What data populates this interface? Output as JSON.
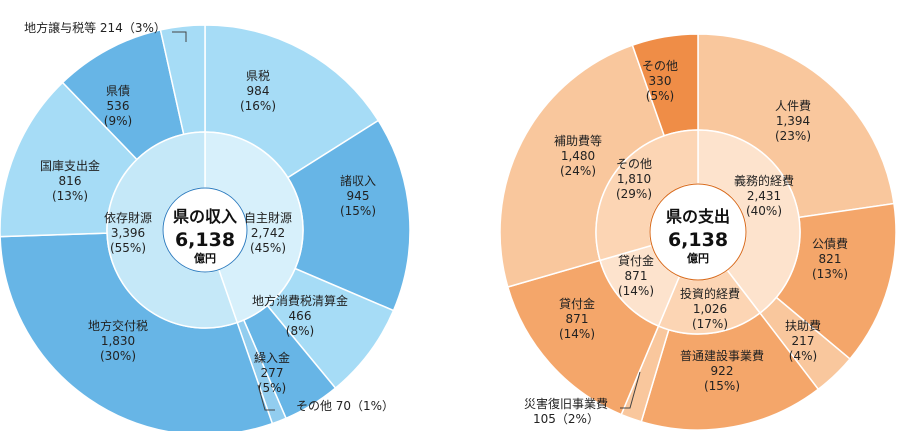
{
  "chart_data": [
    {
      "type": "pie",
      "title": "県の収入",
      "total": "6,138",
      "unit": "億円",
      "inner": [
        {
          "name": "自主財源",
          "value": "2,742",
          "pct": "45%"
        },
        {
          "name": "依存財源",
          "value": "3,396",
          "pct": "55%"
        }
      ],
      "outer": [
        {
          "name": "県税",
          "value": "984",
          "pct": "16%"
        },
        {
          "name": "諸収入",
          "value": "945",
          "pct": "15%"
        },
        {
          "name": "地方消費税清算金",
          "value": "466",
          "pct": "8%"
        },
        {
          "name": "繰入金",
          "value": "277",
          "pct": "5%"
        },
        {
          "name": "その他",
          "value": "70",
          "pct": "1%"
        },
        {
          "name": "地方交付税",
          "value": "1,830",
          "pct": "30%"
        },
        {
          "name": "国庫支出金",
          "value": "816",
          "pct": "13%"
        },
        {
          "name": "県債",
          "value": "536",
          "pct": "9%"
        },
        {
          "name": "地方譲与税等",
          "value": "214",
          "pct": "3%"
        }
      ],
      "colors": {
        "outer_own": "#a6dcf6",
        "outer_dep": "#67b5e6",
        "outer_dep_light": "#92cdef",
        "inner_own": "#d7f0fb",
        "inner_dep": "#c5e8f8",
        "center": "#ffffff",
        "line": "#2f7fc1"
      }
    },
    {
      "type": "pie",
      "title": "県の支出",
      "total": "6,138",
      "unit": "億円",
      "inner": [
        {
          "name": "義務的経費",
          "value": "2,431",
          "pct": "40%"
        },
        {
          "name": "投資的経費",
          "value": "1,026",
          "pct": "17%"
        },
        {
          "name": "貸付金",
          "value": "871",
          "pct": "14%"
        },
        {
          "name": "その他",
          "value": "1,810",
          "pct": "29%"
        }
      ],
      "outer": [
        {
          "name": "人件費",
          "value": "1,394",
          "pct": "23%"
        },
        {
          "name": "公債費",
          "value": "821",
          "pct": "13%"
        },
        {
          "name": "扶助費",
          "value": "217",
          "pct": "4%"
        },
        {
          "name": "普通建設事業費",
          "value": "922",
          "pct": "15%"
        },
        {
          "name": "災害復旧事業費",
          "value": "105",
          "pct": "2%"
        },
        {
          "name": "貸付金",
          "value": "871",
          "pct": "14%"
        },
        {
          "name": "補助費等",
          "value": "1,480",
          "pct": "24%"
        },
        {
          "name": "その他",
          "value": "330",
          "pct": "5%"
        }
      ],
      "colors": {
        "outer_light": "#f9c79d",
        "outer_mid": "#f4a66a",
        "outer_dark": "#ef8d47",
        "inner_a": "#fde3cd",
        "inner_b": "#fcd5b4",
        "center": "#ffffff",
        "line": "#d96a1a"
      }
    }
  ]
}
